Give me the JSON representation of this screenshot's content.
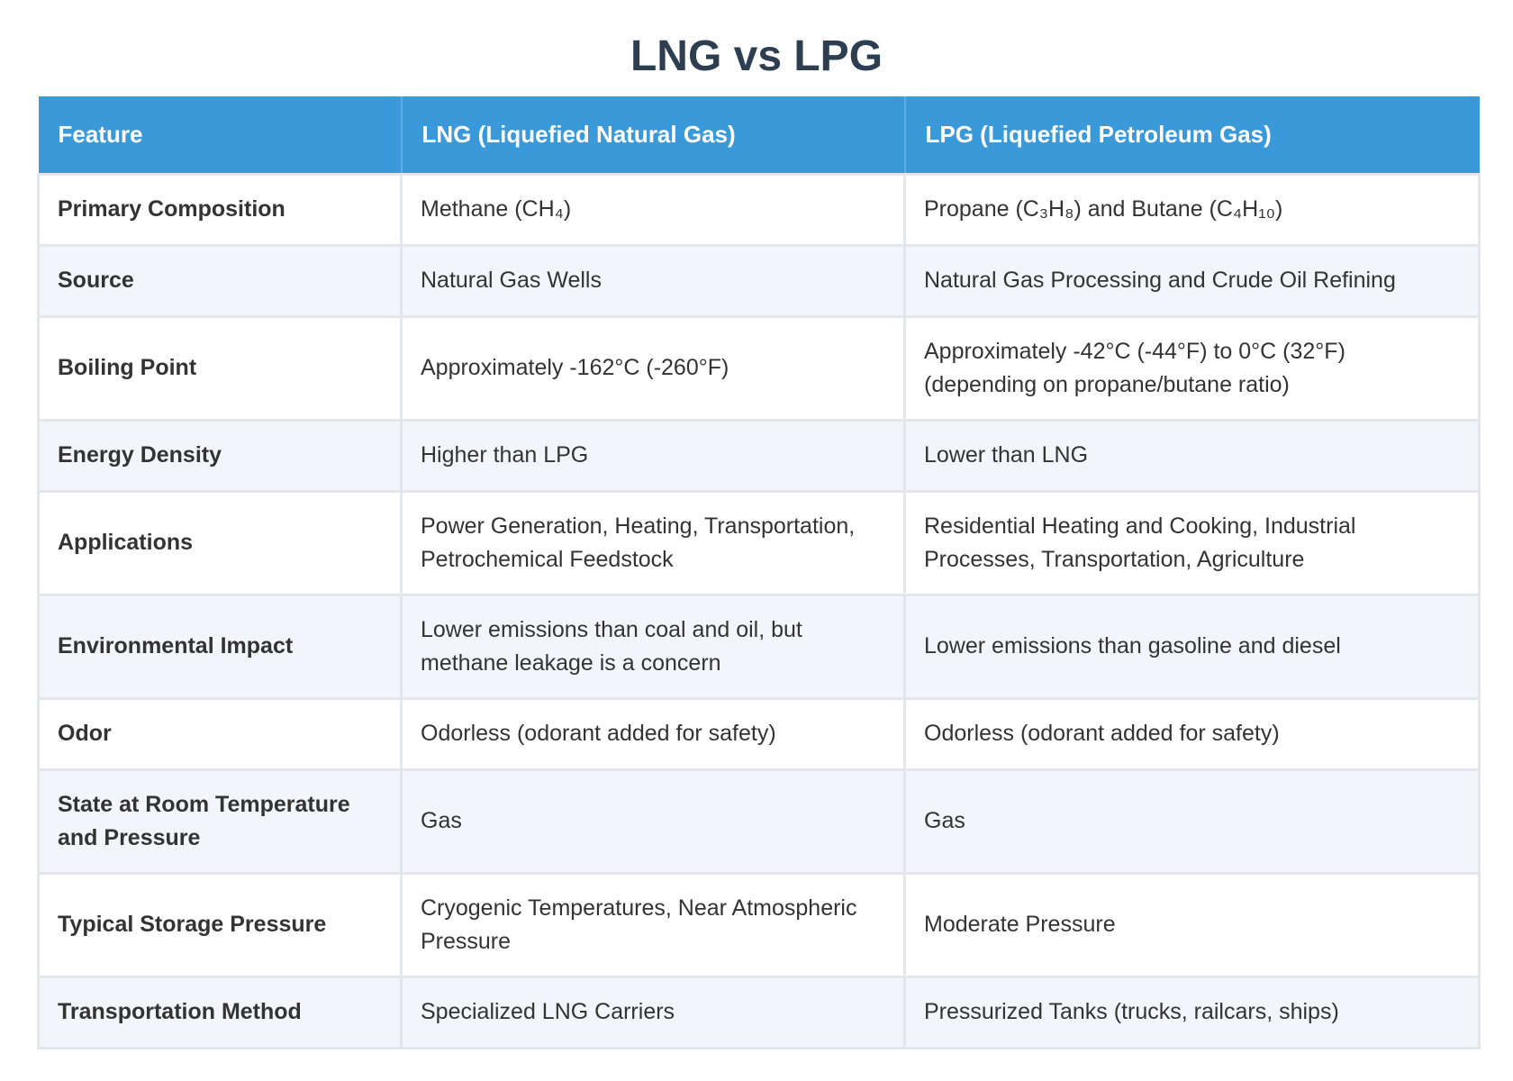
{
  "title": "LNG vs LPG",
  "table": {
    "headers": [
      "Feature",
      "LNG (Liquefied Natural Gas)",
      "LPG (Liquefied Petroleum Gas)"
    ],
    "rows": [
      [
        "Primary Composition",
        "Methane (CH₄)",
        "Propane (C₃H₈) and Butane (C₄H₁₀)"
      ],
      [
        "Source",
        "Natural Gas Wells",
        "Natural Gas Processing and Crude Oil Refining"
      ],
      [
        "Boiling Point",
        "Approximately -162°C (-260°F)",
        "Approximately -42°C (-44°F) to 0°C (32°F) (depending on propane/butane ratio)"
      ],
      [
        "Energy Density",
        "Higher than LPG",
        "Lower than LNG"
      ],
      [
        "Applications",
        "Power Generation, Heating, Transportation, Petrochemical Feedstock",
        "Residential Heating and Cooking, Industrial Processes, Transportation, Agriculture"
      ],
      [
        "Environmental Impact",
        "Lower emissions than coal and oil, but methane leakage is a concern",
        "Lower emissions than gasoline and diesel"
      ],
      [
        "Odor",
        "Odorless (odorant added for safety)",
        "Odorless (odorant added for safety)"
      ],
      [
        "State at Room Temperature and Pressure",
        "Gas",
        "Gas"
      ],
      [
        "Typical Storage Pressure",
        "Cryogenic Temperatures, Near Atmospheric Pressure",
        "Moderate Pressure"
      ],
      [
        "Transportation Method",
        "Specialized LNG Carriers",
        "Pressurized Tanks (trucks, railcars, ships)"
      ]
    ]
  },
  "colors": {
    "header_bg": "#3a9ad9",
    "header_text": "#ffffff",
    "title_text": "#2c3e50",
    "row_alt_bg": "#f2f5fa",
    "border": "#e3e6ea"
  }
}
